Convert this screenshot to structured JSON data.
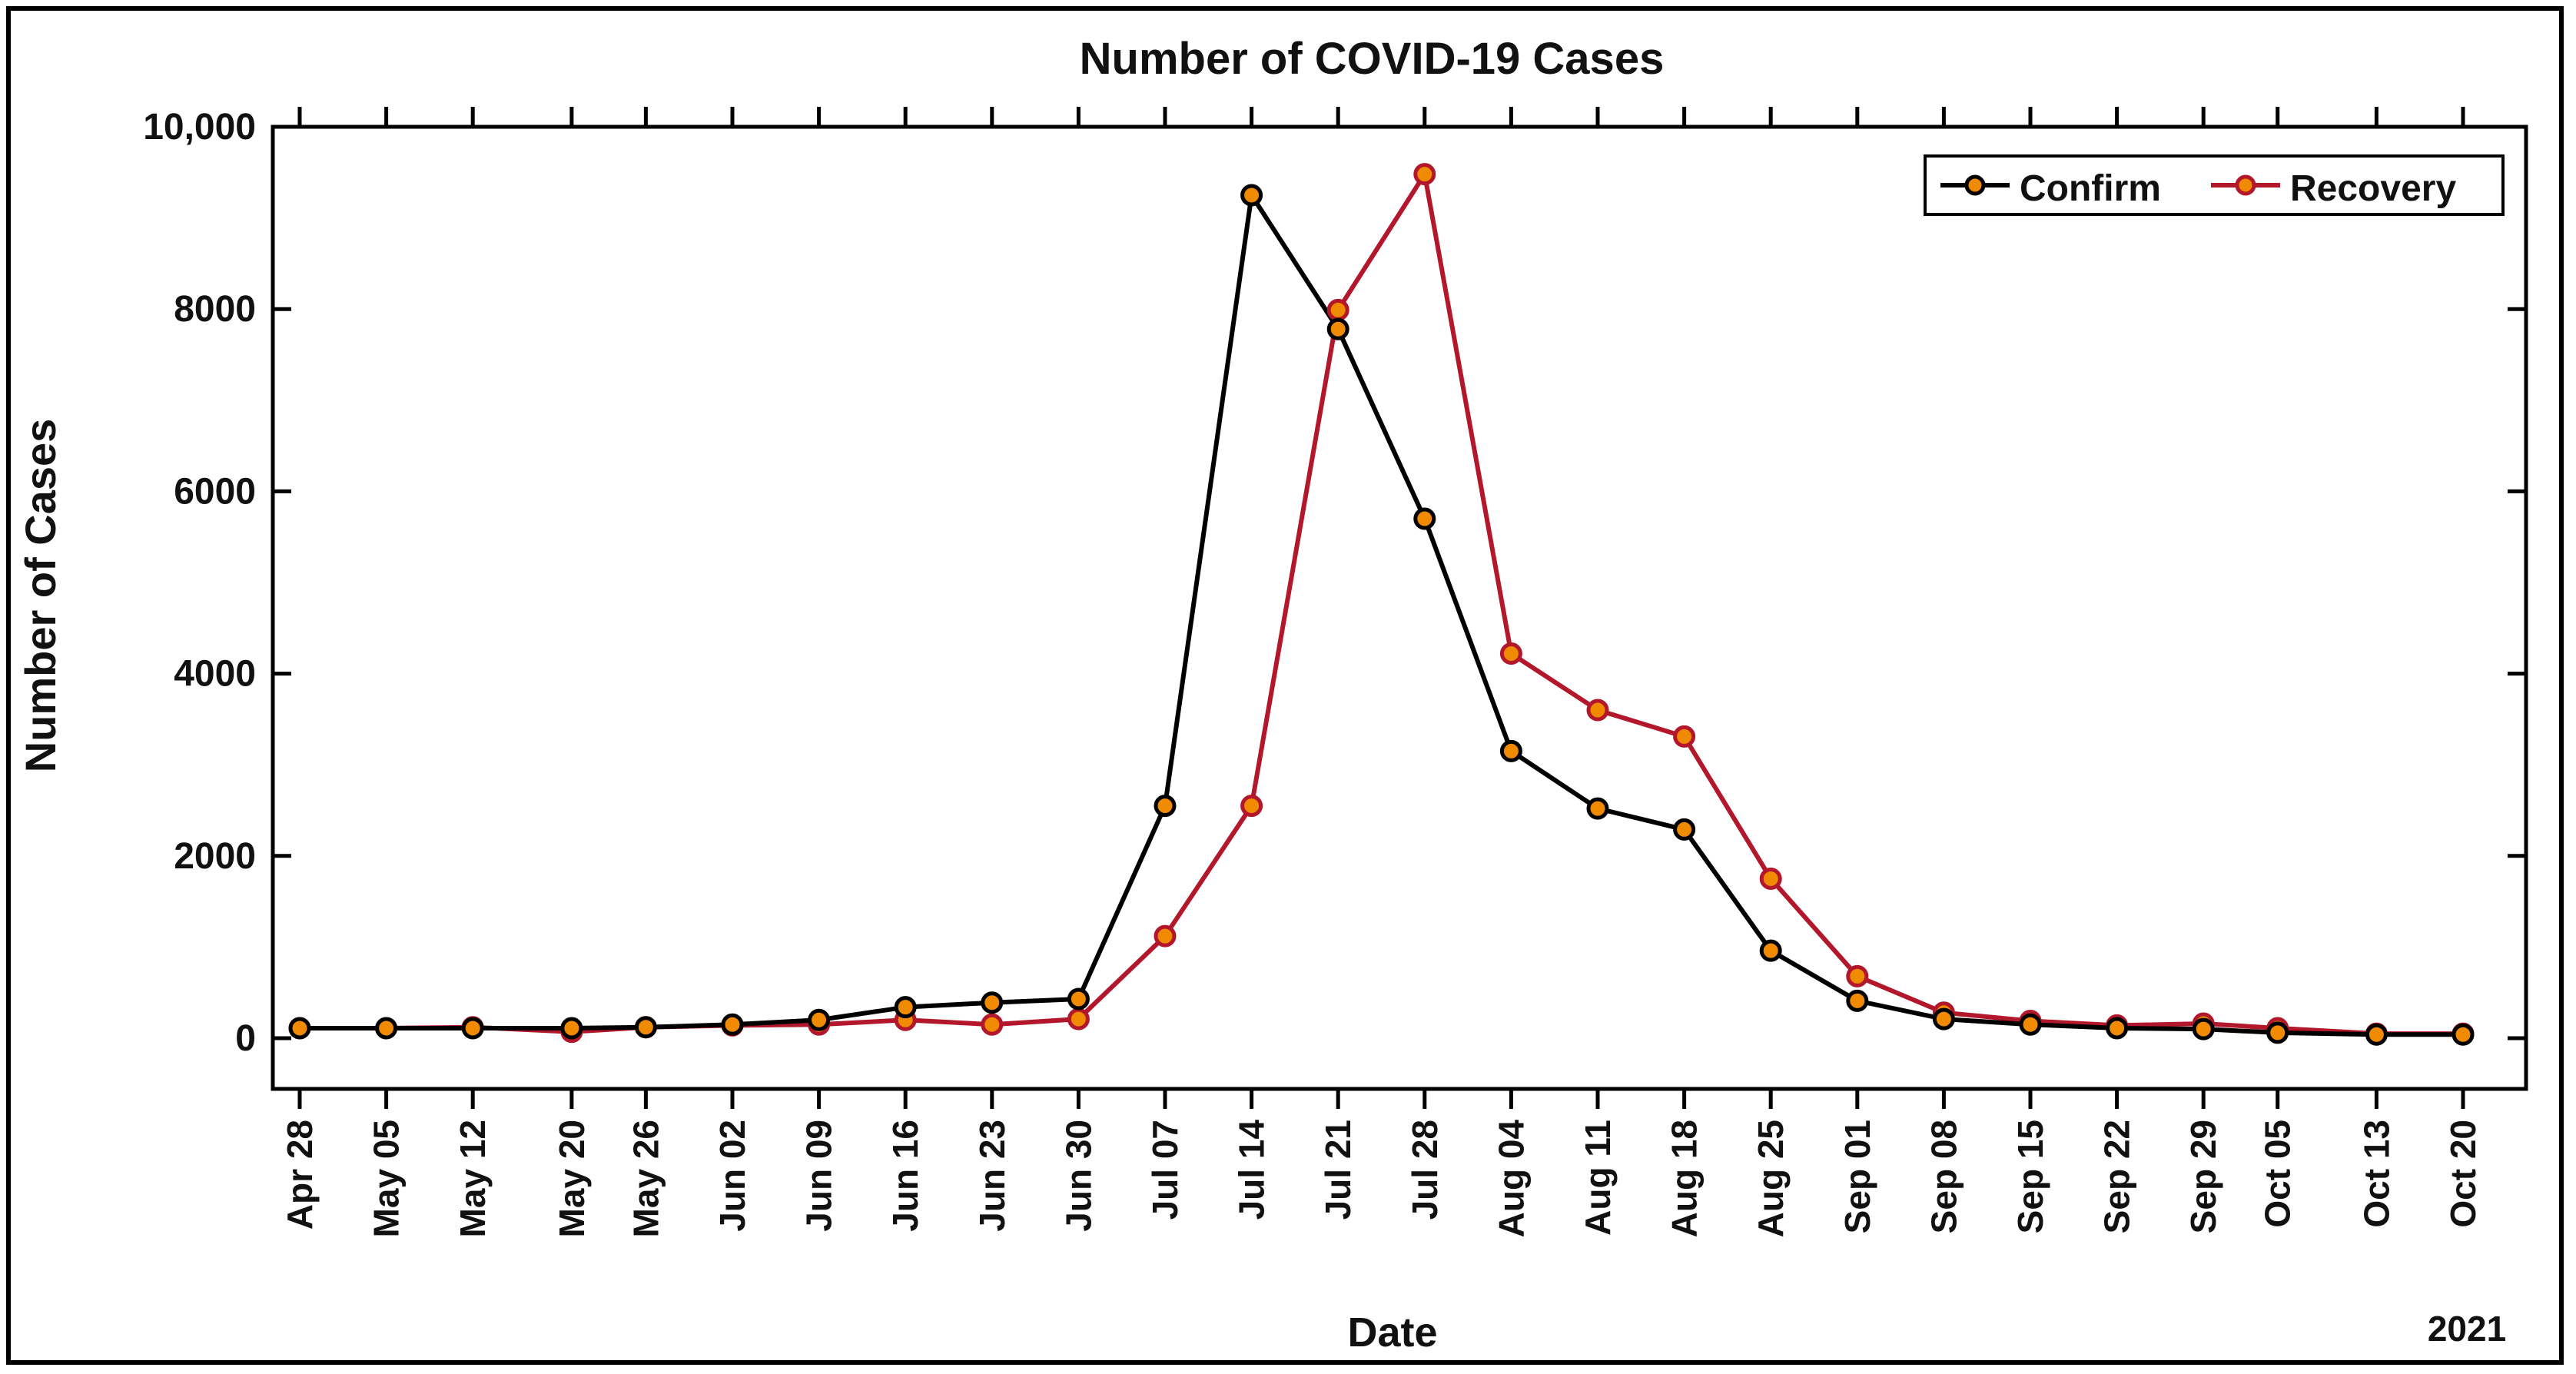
{
  "chart_data": {
    "type": "line",
    "title": "Number of COVID-19 Cases",
    "xlabel": "Date",
    "ylabel": "Number of Cases",
    "year_label": "2021",
    "ylim": [
      -550,
      10000
    ],
    "yticks": [
      0,
      2000,
      4000,
      6000,
      8000,
      10000
    ],
    "ytick_labels": [
      "0",
      "2000",
      "4000",
      "6000",
      "8000",
      "10,000"
    ],
    "grid": false,
    "legend_position": "top-right",
    "x_days": [
      0,
      7,
      14,
      22,
      28,
      35,
      42,
      49,
      56,
      63,
      70,
      77,
      84,
      91,
      98,
      105,
      112,
      119,
      126,
      133,
      140,
      147,
      154,
      160,
      168,
      175
    ],
    "categories": [
      "Apr 28",
      "May 05",
      "May 12",
      "May 20",
      "May 26",
      "Jun 02",
      "Jun 09",
      "Jun 16",
      "Jun 23",
      "Jun 30",
      "Jul 07",
      "Jul 14",
      "Jul 21",
      "Jul 28",
      "Aug 04",
      "Aug 11",
      "Aug 18",
      "Aug 25",
      "Sep 01",
      "Sep 08",
      "Sep 15",
      "Sep 22",
      "Sep 29",
      "Oct 05",
      "Oct 13",
      "Oct 20"
    ],
    "series": [
      {
        "name": "Confirm",
        "line_color": "#000000",
        "marker_color": "#f08a00",
        "values": [
          110,
          110,
          110,
          110,
          120,
          150,
          200,
          340,
          390,
          430,
          2550,
          9250,
          7780,
          5700,
          3150,
          2520,
          2290,
          960,
          410,
          210,
          150,
          110,
          100,
          60,
          40,
          40
        ]
      },
      {
        "name": "Recovery",
        "line_color": "#b3172b",
        "marker_color": "#f08a00",
        "values": [
          110,
          110,
          120,
          70,
          120,
          140,
          150,
          200,
          150,
          210,
          1120,
          2550,
          7990,
          9480,
          4220,
          3600,
          3310,
          1750,
          680,
          280,
          190,
          140,
          160,
          110,
          50,
          50
        ]
      }
    ]
  }
}
